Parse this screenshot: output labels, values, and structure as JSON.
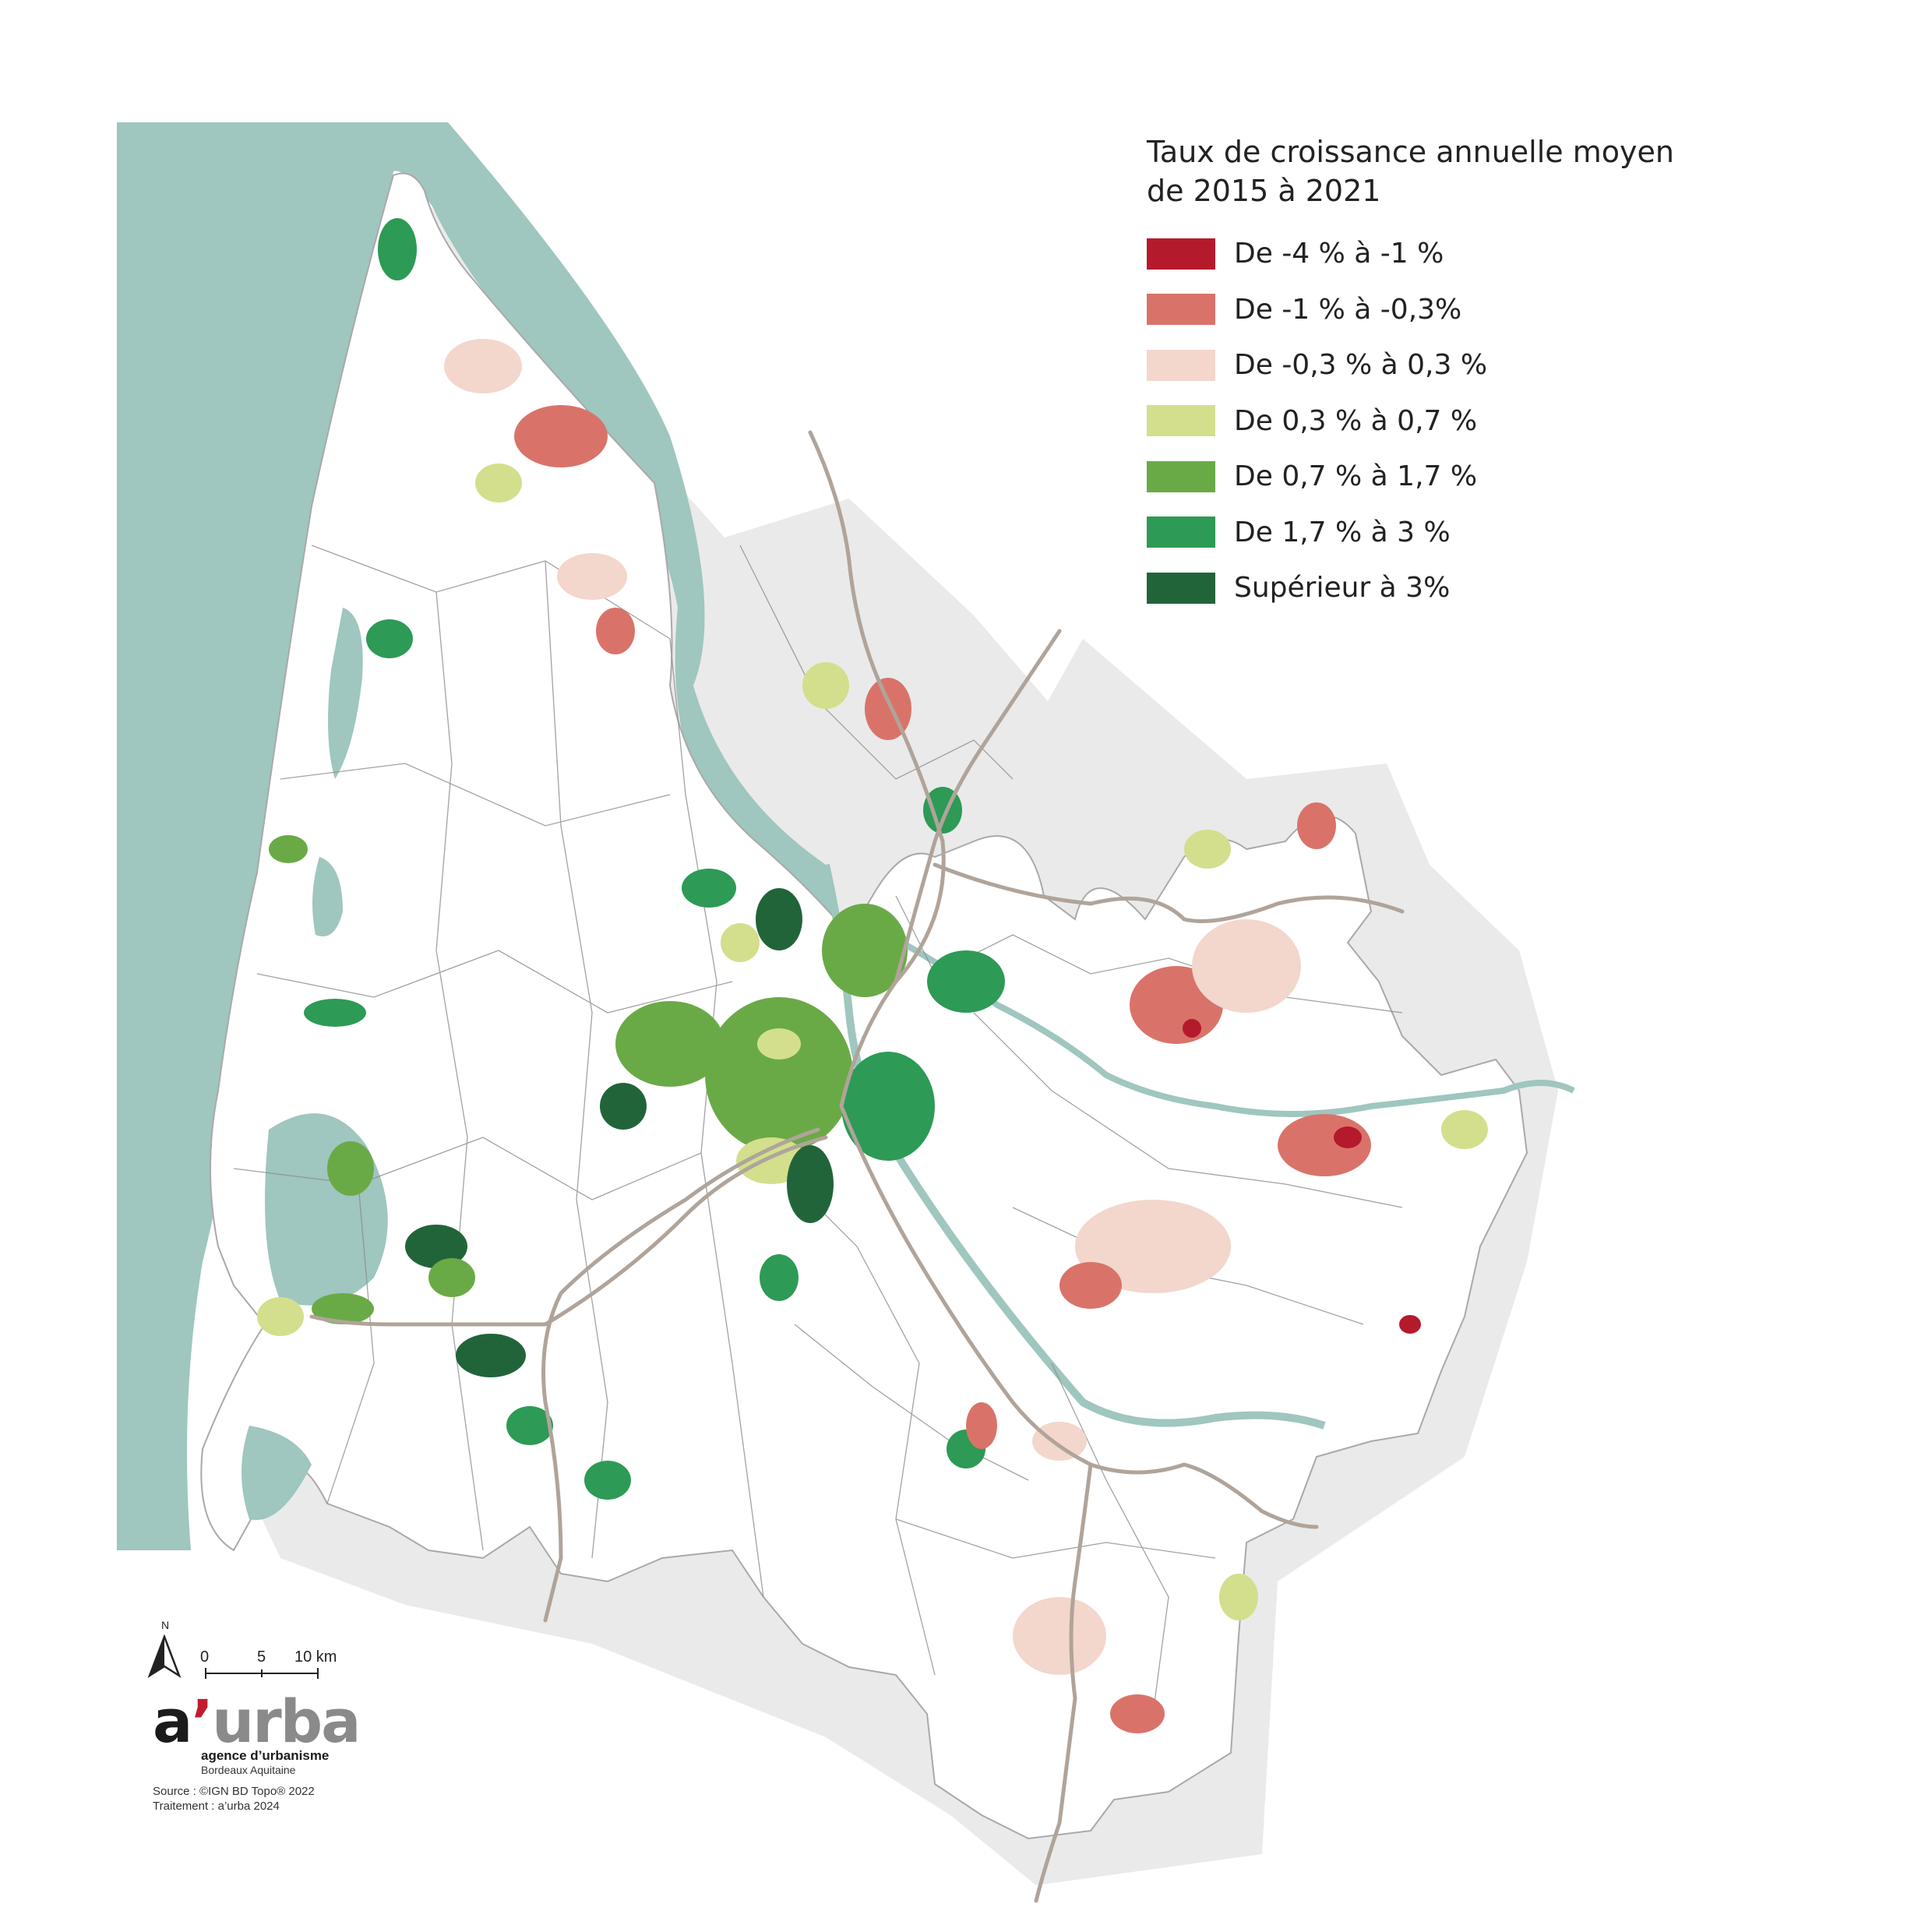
{
  "legend": {
    "title_line1": "Taux de croissance annuelle moyen",
    "title_line2": "de 2015 à 2021",
    "classes": [
      {
        "label": "De -4 % à  -1 %",
        "color": "#b5192c"
      },
      {
        "label": "De -1 % à -0,3%",
        "color": "#d9736a"
      },
      {
        "label": "De -0,3 % à 0,3 %",
        "color": "#f3d6cc"
      },
      {
        "label": "De 0,3 % à 0,7 %",
        "color": "#d3df8c"
      },
      {
        "label": "De 0,7 % à 1,7 %",
        "color": "#6aaa46"
      },
      {
        "label": "De 1,7 % à 3 %",
        "color": "#2d9a56"
      },
      {
        "label": "Supérieur à 3%",
        "color": "#22643a"
      }
    ]
  },
  "north_arrow": {
    "label": "N"
  },
  "scale_bar": {
    "ticks": [
      "0",
      "5",
      "10 km"
    ]
  },
  "logo": {
    "a": "a",
    "apostrophe": "’",
    "urba": "urba",
    "line1": "agence d’urbanisme",
    "line2": "Bordeaux Aquitaine"
  },
  "source": {
    "line1": "Source : ©IGN BD Topo® 2022",
    "line2": "Traitement : a’urba 2024"
  },
  "colors": {
    "water": "#9fc6bf",
    "road": "#b0a49a",
    "boundary": "#8c8c8c",
    "territory": "#ffffff",
    "shadow": "#d8d8d8"
  }
}
